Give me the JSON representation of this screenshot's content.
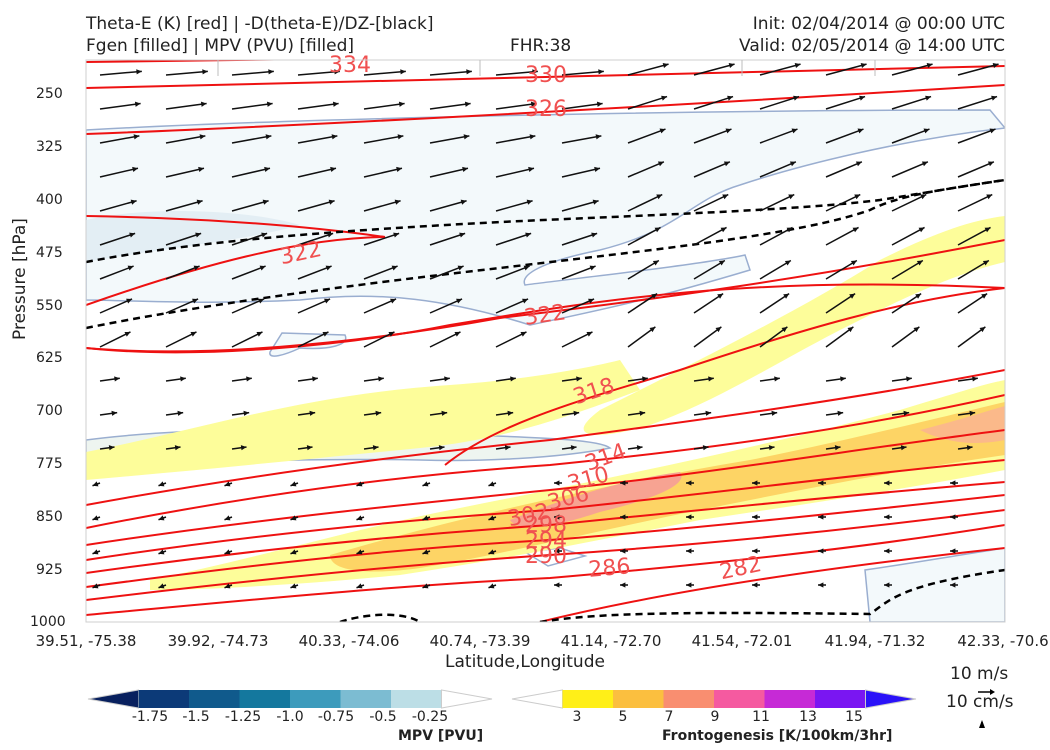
{
  "header": {
    "title_line1": "Theta-E (K) [red] | -D(theta-E)/DZ-[black]",
    "title_line2": "Fgen [filled] | MPV (PVU) [filled]",
    "fhr": "FHR:38",
    "init": "Init: 02/04/2014 @ 00:00 UTC",
    "valid": "Valid: 02/05/2014 @ 14:00 UTC"
  },
  "chart_data": {
    "type": "cross-section",
    "xlabel": "Latitude,Longitude",
    "ylabel": "Pressure [hPa]",
    "x_ticks": [
      "39.51, -75.38",
      "39.92, -74.73",
      "40.33, -74.06",
      "40.74, -73.39",
      "41.14, -72.70",
      "41.54, -72.01",
      "41.94, -71.32",
      "42.33, -70.6"
    ],
    "y_ticks": [
      250,
      325,
      400,
      475,
      550,
      625,
      700,
      775,
      850,
      925,
      1000
    ],
    "ylim": [
      1000,
      200
    ],
    "theta_e_contours": [
      {
        "label": "334",
        "level": 334
      },
      {
        "label": "330",
        "level": 330
      },
      {
        "label": "326",
        "level": 326
      },
      {
        "label": "322",
        "level": 322
      },
      {
        "label": "322",
        "level": 322
      },
      {
        "label": "318",
        "level": 318
      },
      {
        "label": "314",
        "level": 314
      },
      {
        "label": "310",
        "level": 310
      },
      {
        "label": "306",
        "level": 306
      },
      {
        "label": "302",
        "level": 302
      },
      {
        "label": "298",
        "level": 298
      },
      {
        "label": "294",
        "level": 294
      },
      {
        "label": "290",
        "level": 290
      },
      {
        "label": "286",
        "level": 286
      },
      {
        "label": "282",
        "level": 282
      }
    ],
    "mpv_colorbar": {
      "title": "MPV [PVU]",
      "ticks": [
        "-1.75",
        "-1.5",
        "-1.25",
        "-1.0",
        "-0.75",
        "-0.5",
        "-0.25"
      ],
      "colors": [
        "#08205e",
        "#0c3a78",
        "#105a8c",
        "#14789e",
        "#3d9bbc",
        "#7cbcd2",
        "#bcdee6",
        "#ffffff"
      ]
    },
    "fgen_colorbar": {
      "title": "Frontogenesis [K/100km/3hr]",
      "ticks": [
        "3",
        "5",
        "7",
        "9",
        "11",
        "13",
        "15"
      ],
      "colors": [
        "#ffffff",
        "#ffef18",
        "#fbbf3f",
        "#f98e70",
        "#f55aa0",
        "#c62ad6",
        "#7a16f2",
        "#2a12f8"
      ]
    },
    "wind_reference": {
      "horizontal": "10 m/s",
      "vertical": "10 cm/s"
    }
  }
}
